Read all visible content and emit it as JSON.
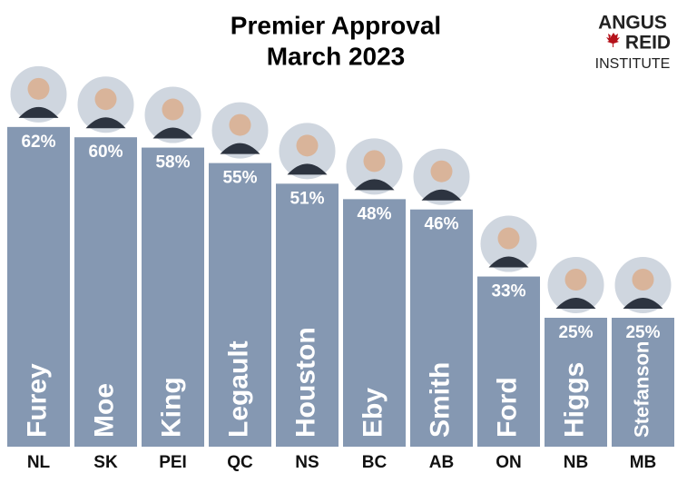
{
  "chart_data": {
    "type": "bar",
    "title": "Premier Approval",
    "subtitle": "March 2023",
    "logo": {
      "line1": "ANGUS",
      "line2": "REID",
      "line3": "INSTITUTE"
    },
    "categories": [
      "NL",
      "SK",
      "PEI",
      "QC",
      "NS",
      "BC",
      "AB",
      "ON",
      "NB",
      "MB"
    ],
    "names": [
      "Furey",
      "Moe",
      "King",
      "Legault",
      "Houston",
      "Eby",
      "Smith",
      "Ford",
      "Higgs",
      "Stefanson"
    ],
    "values": [
      62,
      60,
      58,
      55,
      51,
      48,
      46,
      33,
      25,
      25
    ],
    "value_labels": [
      "62%",
      "60%",
      "58%",
      "55%",
      "51%",
      "48%",
      "46%",
      "33%",
      "25%",
      "25%"
    ],
    "color": "#8598b2"
  }
}
